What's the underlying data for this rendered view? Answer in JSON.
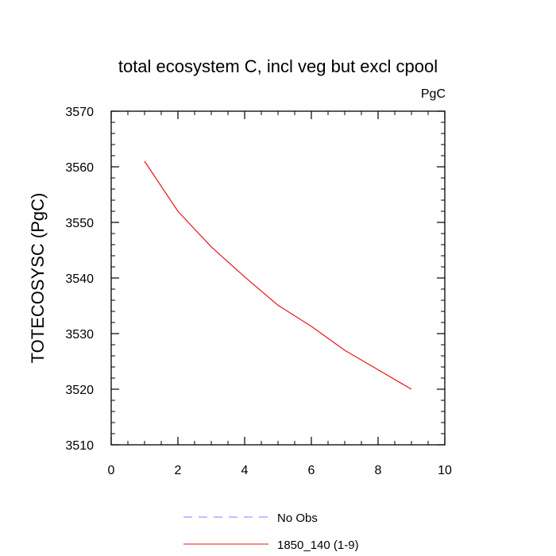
{
  "chart_data": {
    "type": "line",
    "title": "total ecosystem C, incl veg but excl cpool",
    "units_label": "PgC",
    "xlabel": "",
    "ylabel": "TOTECOSYSC  (PgC)",
    "xlim": [
      0,
      10
    ],
    "ylim": [
      3510,
      3570
    ],
    "x_ticks": [
      0,
      2,
      4,
      6,
      8,
      10
    ],
    "y_ticks": [
      3510,
      3520,
      3530,
      3540,
      3550,
      3560,
      3570
    ],
    "grid": false,
    "legend_position": "bottom",
    "series": [
      {
        "name": "1850_140 (1-9)",
        "color": "#e8141b",
        "style": "solid",
        "x": [
          1,
          2,
          3,
          4,
          5,
          6,
          7,
          8,
          9
        ],
        "values": [
          3561.0,
          3552.0,
          3545.6,
          3540.2,
          3535.1,
          3531.3,
          3527.0,
          3523.5,
          3520.0
        ]
      }
    ],
    "legend": [
      {
        "label": "No Obs",
        "color": "#8080ff",
        "style": "dashed"
      },
      {
        "label": "1850_140 (1-9)",
        "color": "#e8141b",
        "style": "solid"
      }
    ]
  }
}
